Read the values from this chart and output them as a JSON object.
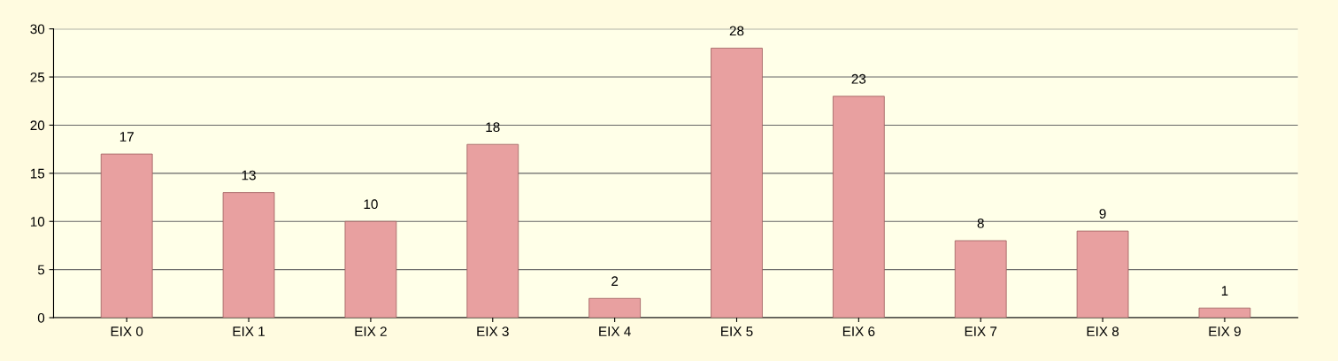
{
  "chart_data": {
    "type": "bar",
    "categories": [
      "EIX 0",
      "EIX 1",
      "EIX 2",
      "EIX 3",
      "EIX 4",
      "EIX 5",
      "EIX 6",
      "EIX 7",
      "EIX 8",
      "EIX 9"
    ],
    "values": [
      17,
      13,
      10,
      18,
      2,
      28,
      23,
      8,
      9,
      1
    ],
    "color": "#e8a0a0",
    "ylim": [
      0,
      30
    ],
    "yticks": [
      0,
      5,
      10,
      15,
      20,
      25,
      30
    ],
    "grid": "y",
    "data_labels": true
  }
}
